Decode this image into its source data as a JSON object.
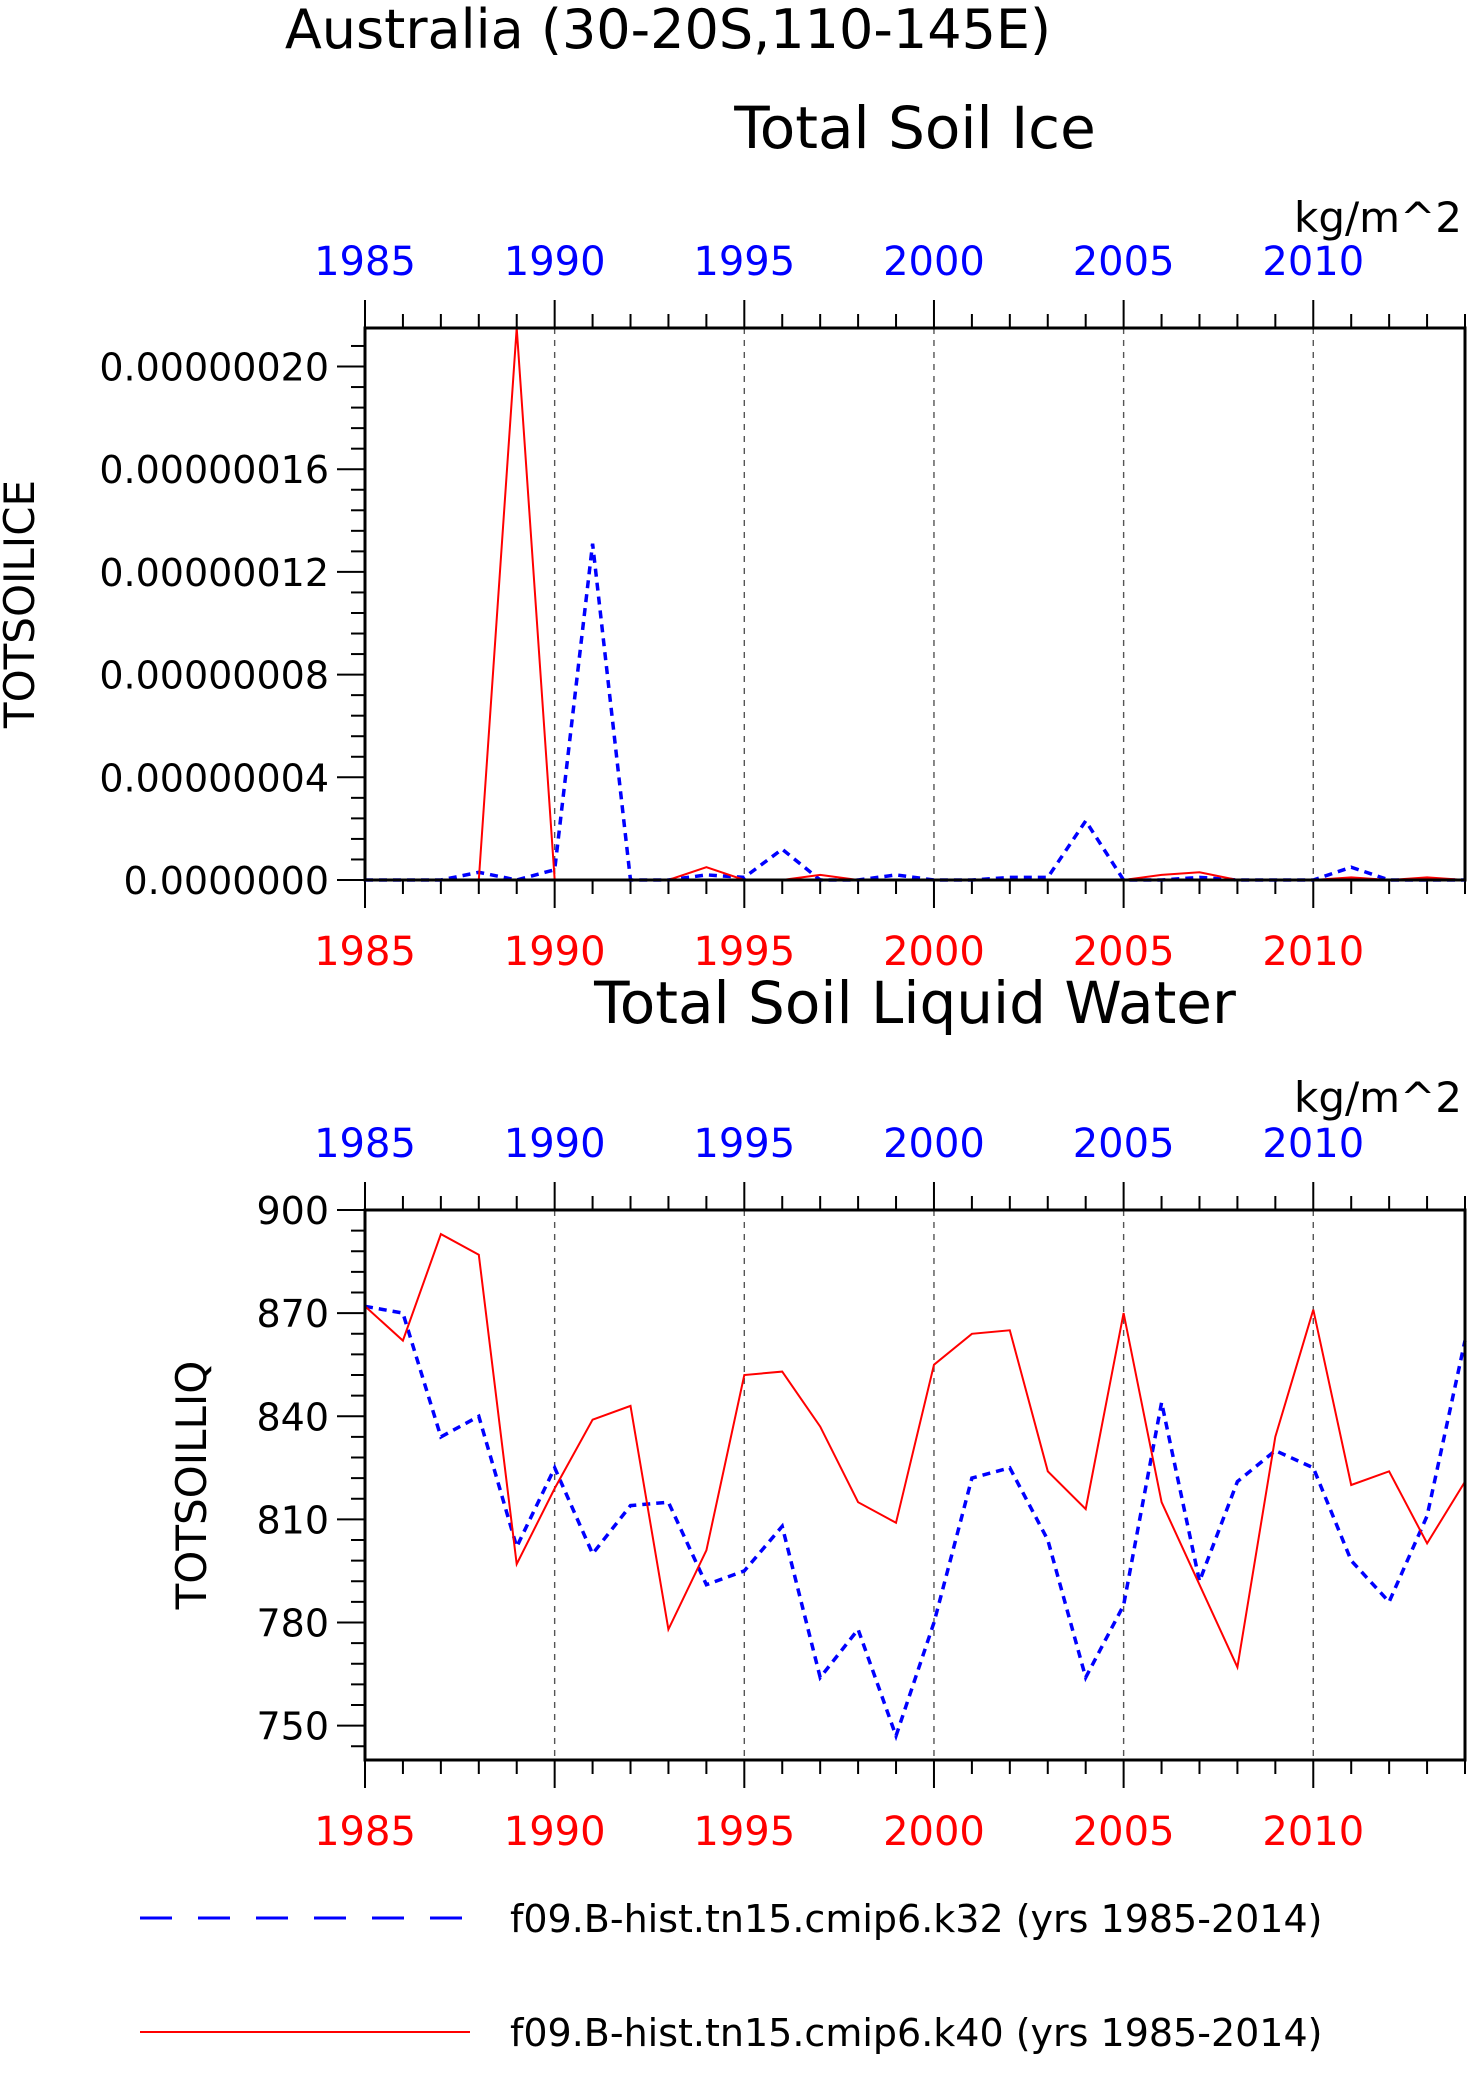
{
  "page": {
    "title": "Australia (30-20S,110-145E)"
  },
  "colors": {
    "red": "#ff0000",
    "blue": "#0000ff",
    "black": "#000000"
  },
  "legend": {
    "items": [
      {
        "label": "f09.B-hist.tn15.cmip6.k32 (yrs 1985-2014)",
        "color": "#0000ff",
        "style": "dashed"
      },
      {
        "label": "f09.B-hist.tn15.cmip6.k40 (yrs 1985-2014)",
        "color": "#ff0000",
        "style": "solid"
      }
    ]
  },
  "chart_data": [
    {
      "type": "line",
      "title": "Total Soil Ice",
      "ylabel": "TOTSOILICE",
      "units": "kg/m^2",
      "x": [
        1985,
        1986,
        1987,
        1988,
        1989,
        1990,
        1991,
        1992,
        1993,
        1994,
        1995,
        1996,
        1997,
        1998,
        1999,
        2000,
        2001,
        2002,
        2003,
        2004,
        2005,
        2006,
        2007,
        2008,
        2009,
        2010,
        2011,
        2012,
        2013,
        2014
      ],
      "xlim": [
        1985,
        2014
      ],
      "ylim": [
        0,
        2.15e-07
      ],
      "xticks": [
        "1985",
        "1990",
        "1995",
        "2000",
        "2005",
        "2010"
      ],
      "xtick_values": [
        1985,
        1990,
        1995,
        2000,
        2005,
        2010
      ],
      "yticks": [
        "0.0000000",
        "0.00000004",
        "0.00000008",
        "0.00000012",
        "0.00000016",
        "0.00000020"
      ],
      "ytick_values": [
        0,
        4e-08,
        8e-08,
        1.2e-07,
        1.6e-07,
        2e-07
      ],
      "series": [
        {
          "color": "#0000ff",
          "style": "dashed",
          "values": [
            0,
            0,
            0,
            3e-09,
            0,
            4e-09,
            1.31e-07,
            0,
            0,
            2e-09,
            1e-09,
            1.2e-08,
            0,
            0,
            2e-09,
            0,
            0,
            1e-09,
            1e-09,
            2.3e-08,
            0,
            0,
            1e-09,
            0,
            0,
            0,
            5e-09,
            0,
            0,
            0
          ]
        },
        {
          "color": "#ff0000",
          "style": "solid",
          "values": [
            0,
            0,
            0,
            0,
            2.15e-07,
            0,
            0,
            0,
            0,
            5e-09,
            0,
            0,
            2e-09,
            0,
            0,
            0,
            0,
            0,
            0,
            0,
            0,
            2e-09,
            3e-09,
            0,
            0,
            0,
            1e-09,
            0,
            1e-09,
            0
          ]
        }
      ]
    },
    {
      "type": "line",
      "title": "Total Soil Liquid Water",
      "ylabel": "TOTSOILLIQ",
      "units": "kg/m^2",
      "x": [
        1985,
        1986,
        1987,
        1988,
        1989,
        1990,
        1991,
        1992,
        1993,
        1994,
        1995,
        1996,
        1997,
        1998,
        1999,
        2000,
        2001,
        2002,
        2003,
        2004,
        2005,
        2006,
        2007,
        2008,
        2009,
        2010,
        2011,
        2012,
        2013,
        2014
      ],
      "xlim": [
        1985,
        2014
      ],
      "ylim": [
        740,
        900
      ],
      "xticks": [
        "1985",
        "1990",
        "1995",
        "2000",
        "2005",
        "2010"
      ],
      "xtick_values": [
        1985,
        1990,
        1995,
        2000,
        2005,
        2010
      ],
      "yticks": [
        "750",
        "780",
        "810",
        "840",
        "870",
        "900"
      ],
      "ytick_values": [
        750,
        780,
        810,
        840,
        870,
        900
      ],
      "series": [
        {
          "color": "#0000ff",
          "style": "dashed",
          "values": [
            872,
            870,
            834,
            840,
            802,
            825,
            800,
            814,
            815,
            791,
            795,
            808,
            764,
            778,
            747,
            780,
            822,
            825,
            804,
            764,
            785,
            844,
            792,
            821,
            830,
            825,
            798,
            786,
            811,
            862
          ]
        },
        {
          "color": "#ff0000",
          "style": "solid",
          "values": [
            872,
            862,
            893,
            887,
            797,
            819,
            839,
            843,
            778,
            801,
            852,
            853,
            837,
            815,
            809,
            855,
            864,
            865,
            824,
            813,
            870,
            815,
            791,
            767,
            834,
            871,
            820,
            824,
            803,
            821
          ]
        }
      ]
    }
  ]
}
